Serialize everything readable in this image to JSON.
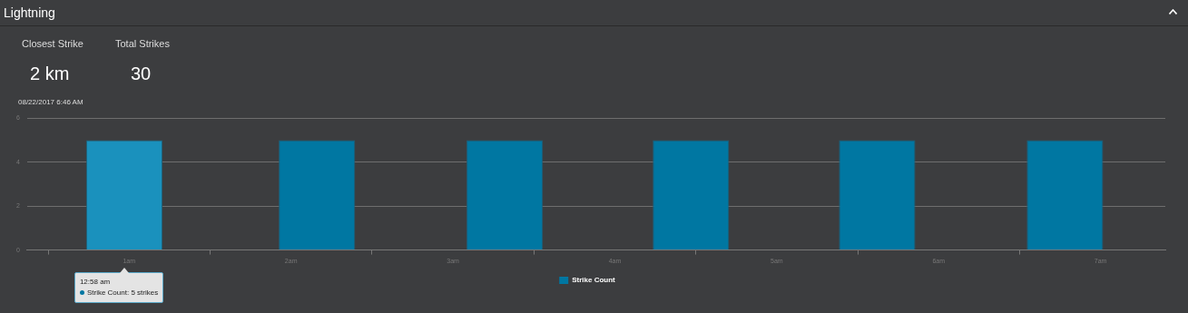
{
  "chart_data": {
    "type": "bar",
    "title": "Lightning",
    "annotations": [
      "Closest Strike",
      "2 km",
      "Total Strikes",
      "30",
      "08/22/2017 6:46 AM",
      "12:58 am",
      "Strike Count: 5 strikes"
    ],
    "x": [
      0.97,
      2.16,
      3.32,
      4.47,
      5.62,
      6.78
    ],
    "series": [
      {
        "name": "Strike Count",
        "color": "#0077a2",
        "colors": [
          "#1a91bd",
          "#0077a2",
          "#0077a2",
          "#0077a2",
          "#0077a2",
          "#0077a2"
        ],
        "values": [
          5,
          5,
          5,
          5,
          5,
          5
        ]
      }
    ],
    "xlim": [
      0.37,
      7.4
    ],
    "xticks": [
      {
        "value": 1,
        "label": "1am"
      },
      {
        "value": 2,
        "label": "2am"
      },
      {
        "value": 3,
        "label": "3am"
      },
      {
        "value": 4,
        "label": "4am"
      },
      {
        "value": 5,
        "label": "5am"
      },
      {
        "value": 6,
        "label": "6am"
      },
      {
        "value": 7,
        "label": "7am"
      }
    ],
    "ylim": [
      0,
      6
    ],
    "yticks": [
      0,
      2,
      4,
      6
    ],
    "grid": "y",
    "legend": "bottom"
  }
}
